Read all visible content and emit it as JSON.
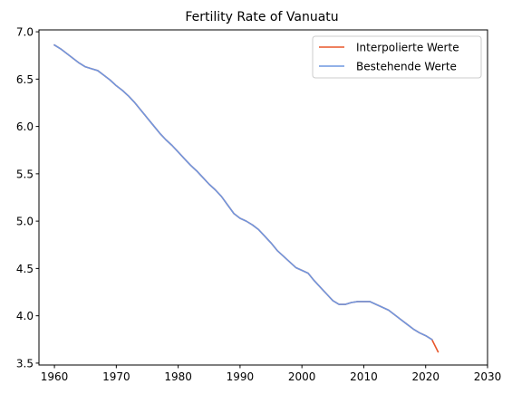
{
  "chart_data": {
    "type": "line",
    "title": "Fertility Rate of Vanuatu",
    "xlabel": "",
    "ylabel": "",
    "xlim": [
      1957.5,
      2030
    ],
    "ylim": [
      3.48,
      7.02
    ],
    "xticks": [
      1960,
      1970,
      1980,
      1990,
      2000,
      2010,
      2020,
      2030
    ],
    "yticks": [
      3.5,
      4.0,
      4.5,
      5.0,
      5.5,
      6.0,
      6.5,
      7.0
    ],
    "ytick_labels": [
      "3.5",
      "4.0",
      "4.5",
      "5.0",
      "5.5",
      "6.0",
      "6.5",
      "7.0"
    ],
    "grid": false,
    "legend_position": "top-right",
    "series": [
      {
        "name": "Interpolierte Werte",
        "color": "#e8562a",
        "x": [
          1960,
          1961,
          1962,
          1963,
          1964,
          1965,
          1966,
          1967,
          1968,
          1969,
          1970,
          1971,
          1972,
          1973,
          1974,
          1975,
          1976,
          1977,
          1978,
          1979,
          1980,
          1981,
          1982,
          1983,
          1984,
          1985,
          1986,
          1987,
          1988,
          1989,
          1990,
          1991,
          1992,
          1993,
          1994,
          1995,
          1996,
          1997,
          1998,
          1999,
          2000,
          2001,
          2002,
          2003,
          2004,
          2005,
          2006,
          2007,
          2008,
          2009,
          2010,
          2011,
          2012,
          2013,
          2014,
          2015,
          2016,
          2017,
          2018,
          2019,
          2020,
          2021,
          2022
        ],
        "y": [
          6.86,
          6.82,
          6.77,
          6.72,
          6.67,
          6.63,
          6.61,
          6.59,
          6.54,
          6.49,
          6.43,
          6.38,
          6.32,
          6.25,
          6.17,
          6.09,
          6.01,
          5.93,
          5.86,
          5.8,
          5.73,
          5.66,
          5.59,
          5.53,
          5.46,
          5.39,
          5.33,
          5.26,
          5.17,
          5.08,
          5.03,
          5.0,
          4.96,
          4.91,
          4.84,
          4.77,
          4.69,
          4.63,
          4.57,
          4.51,
          4.48,
          4.45,
          4.37,
          4.3,
          4.23,
          4.16,
          4.12,
          4.12,
          4.14,
          4.15,
          4.15,
          4.15,
          4.12,
          4.09,
          4.06,
          4.01,
          3.96,
          3.91,
          3.86,
          3.82,
          3.79,
          3.75,
          3.62
        ]
      },
      {
        "name": "Bestehende Werte",
        "color": "#6f97e0",
        "x": [
          1960,
          1961,
          1962,
          1963,
          1964,
          1965,
          1966,
          1967,
          1968,
          1969,
          1970,
          1971,
          1972,
          1973,
          1974,
          1975,
          1976,
          1977,
          1978,
          1979,
          1980,
          1981,
          1982,
          1983,
          1984,
          1985,
          1986,
          1987,
          1988,
          1989,
          1990,
          1991,
          1992,
          1993,
          1994,
          1995,
          1996,
          1997,
          1998,
          1999,
          2000,
          2001,
          2002,
          2003,
          2004,
          2005,
          2006,
          2007,
          2008,
          2009,
          2010,
          2011,
          2012,
          2013,
          2014,
          2015,
          2016,
          2017,
          2018,
          2019,
          2020,
          2021
        ],
        "y": [
          6.86,
          6.82,
          6.77,
          6.72,
          6.67,
          6.63,
          6.61,
          6.59,
          6.54,
          6.49,
          6.43,
          6.38,
          6.32,
          6.25,
          6.17,
          6.09,
          6.01,
          5.93,
          5.86,
          5.8,
          5.73,
          5.66,
          5.59,
          5.53,
          5.46,
          5.39,
          5.33,
          5.26,
          5.17,
          5.08,
          5.03,
          5.0,
          4.96,
          4.91,
          4.84,
          4.77,
          4.69,
          4.63,
          4.57,
          4.51,
          4.48,
          4.45,
          4.37,
          4.3,
          4.23,
          4.16,
          4.12,
          4.12,
          4.14,
          4.15,
          4.15,
          4.15,
          4.12,
          4.09,
          4.06,
          4.01,
          3.96,
          3.91,
          3.86,
          3.82,
          3.79,
          3.75
        ]
      }
    ]
  }
}
